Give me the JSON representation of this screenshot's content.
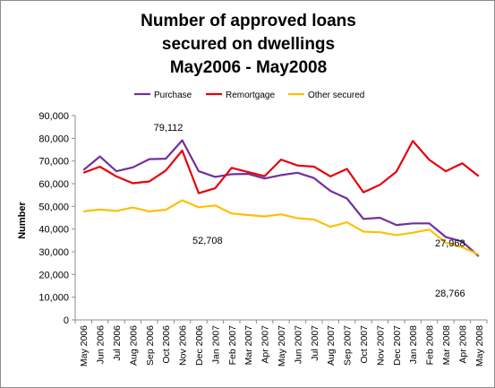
{
  "chart_data": {
    "type": "line",
    "title_lines": [
      "Number of approved loans",
      "secured on dwellings",
      "May2006 - May2008"
    ],
    "xlabel": "",
    "ylabel": "Number",
    "ylim": [
      0,
      90000
    ],
    "yticks": [
      0,
      10000,
      20000,
      30000,
      40000,
      50000,
      60000,
      70000,
      80000,
      90000
    ],
    "ytick_labels": [
      "0",
      "10,000",
      "20,000",
      "30,000",
      "40,000",
      "50,000",
      "60,000",
      "70,000",
      "80,000",
      "90,000"
    ],
    "grid": false,
    "legend_position": "top",
    "categories": [
      "May 2006",
      "Jun 2006",
      "Jul 2006",
      "Aug 2006",
      "Sep 2006",
      "Oct 2006",
      "Nov 2006",
      "Dec 2006",
      "Jan 2007",
      "Feb 2007",
      "Mar 2007",
      "Apr 2007",
      "May 2007",
      "Jun 2007",
      "Jul 2007",
      "Aug 2007",
      "Sep 2007",
      "Oct 2007",
      "Nov 2007",
      "Dec 2007",
      "Jan 2008",
      "Feb 2008",
      "Mar 2008",
      "Apr 2008",
      "May 2008"
    ],
    "series": [
      {
        "name": "Purchase",
        "color": "#7030a0",
        "values": [
          66000,
          72000,
          65500,
          67200,
          70800,
          71000,
          79112,
          65500,
          63000,
          64200,
          64300,
          62300,
          63800,
          64800,
          62500,
          56800,
          53500,
          44500,
          45000,
          41800,
          42500,
          42500,
          36500,
          34500,
          27968
        ]
      },
      {
        "name": "Remortgage",
        "color": "#e8000b",
        "values": [
          64800,
          67500,
          63200,
          60200,
          61000,
          65800,
          74600,
          55800,
          58000,
          67000,
          65100,
          63300,
          70600,
          68000,
          67500,
          63200,
          66500,
          56200,
          59500,
          65300,
          78800,
          70500,
          65500,
          69000,
          63300
        ]
      },
      {
        "name": "Other secured",
        "color": "#ffc000",
        "values": [
          47800,
          48600,
          48000,
          49500,
          47800,
          48500,
          52708,
          49600,
          50400,
          46900,
          46200,
          45600,
          46500,
          44800,
          44200,
          41000,
          43000,
          38900,
          38600,
          37400,
          38400,
          39800,
          34000,
          32000,
          28766
        ]
      }
    ],
    "annotations": [
      "79,112",
      "52,708",
      "27,968",
      "28,766"
    ]
  }
}
